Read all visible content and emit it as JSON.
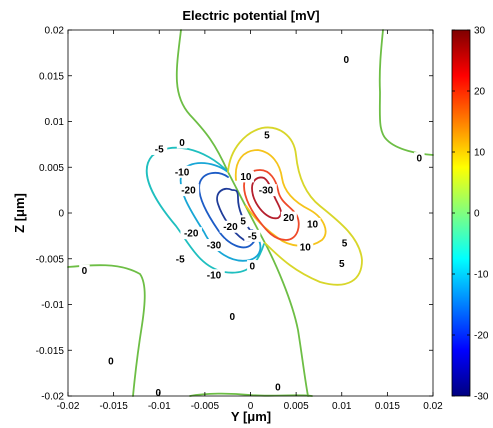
{
  "chart_data": {
    "type": "contour",
    "title": "Electric potential [mV]",
    "xlabel": "Y [μm]",
    "ylabel": "Z [μm]",
    "xlim": [
      -0.02,
      0.02
    ],
    "ylim": [
      -0.02,
      0.02
    ],
    "x_ticks": [
      "-0.02",
      "-0.015",
      "-0.01",
      "-0.005",
      "0",
      "0.005",
      "0.01",
      "0.015",
      "0.02"
    ],
    "y_ticks": [
      "0.02",
      "0.015",
      "0.01",
      "0.005",
      "0",
      "-0.005",
      "-0.01",
      "-0.015",
      "-0.02"
    ],
    "grid": false,
    "colorbar": {
      "range": [
        -30,
        30
      ],
      "ticks": [
        "30",
        "20",
        "10",
        "0",
        "-10",
        "-20",
        "-30"
      ],
      "colormap": "jet"
    },
    "levels": [
      -30,
      -20,
      -10,
      -5,
      0,
      5,
      10,
      20,
      30
    ],
    "level_colors": {
      "-30": "#1f3c99",
      "-20": "#1d5cc6",
      "-10": "#18a6d6",
      "-5": "#1fbfbf",
      "0": "#6dbe45",
      "5": "#d8d62a",
      "10": "#f5c31b",
      "20": "#ef4a2a",
      "30": "#b51f2d"
    },
    "contour_labels": [
      {
        "text": "0",
        "y": 0.0105,
        "z": 0.0168
      },
      {
        "text": "0",
        "y": 0.0185,
        "z": 0.006
      },
      {
        "text": "0",
        "y": -0.0075,
        "z": 0.0077
      },
      {
        "text": "0",
        "y": -0.0182,
        "z": -0.0063
      },
      {
        "text": "0",
        "y": -0.0153,
        "z": -0.0162
      },
      {
        "text": "0",
        "y": -0.002,
        "z": -0.0113
      },
      {
        "text": "0",
        "y": -0.0101,
        "z": -0.0196
      },
      {
        "text": "0",
        "y": 0.003,
        "z": -0.019
      },
      {
        "text": "0",
        "y": 0.0002,
        "z": -0.0058
      },
      {
        "text": "-5",
        "y": -0.01,
        "z": 0.007
      },
      {
        "text": "-5",
        "y": -0.0077,
        "z": -0.005
      },
      {
        "text": "-10",
        "y": -0.0075,
        "z": 0.0045
      },
      {
        "text": "-10",
        "y": -0.004,
        "z": -0.0068
      },
      {
        "text": "-20",
        "y": -0.0068,
        "z": 0.0025
      },
      {
        "text": "-20",
        "y": -0.0065,
        "z": -0.0022
      },
      {
        "text": "-30",
        "y": -0.004,
        "z": -0.0035
      },
      {
        "text": "-20",
        "y": -0.0022,
        "z": -0.0015
      },
      {
        "text": "5",
        "y": 0.0018,
        "z": 0.0085
      },
      {
        "text": "10",
        "y": -0.0005,
        "z": 0.004
      },
      {
        "text": "-30",
        "y": 0.0017,
        "z": 0.0025
      },
      {
        "text": "5",
        "y": -0.0008,
        "z": -0.0009
      },
      {
        "text": "-5",
        "y": 0.0002,
        "z": -0.0025
      },
      {
        "text": "20",
        "y": 0.0042,
        "z": -0.0005
      },
      {
        "text": "10",
        "y": 0.0068,
        "z": -0.0012
      },
      {
        "text": "10",
        "y": 0.006,
        "z": -0.0037
      },
      {
        "text": "5",
        "y": 0.0103,
        "z": -0.0033
      },
      {
        "text": "5",
        "y": 0.01,
        "z": -0.0055
      }
    ]
  }
}
